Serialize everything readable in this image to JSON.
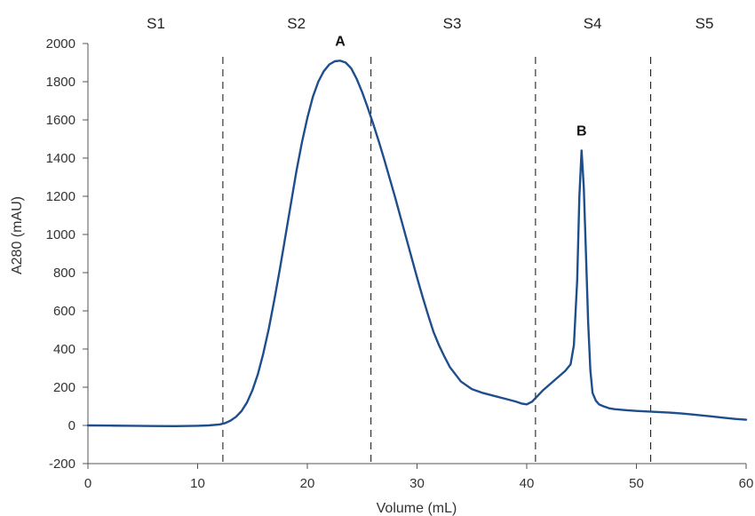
{
  "chart_data": {
    "type": "line",
    "title": "",
    "xlabel": "Volume (mL)",
    "ylabel": "A280 (mAU)",
    "xlim": [
      0,
      60
    ],
    "ylim": [
      -200,
      2000
    ],
    "x_ticks": [
      0,
      10,
      20,
      30,
      40,
      50,
      60
    ],
    "y_ticks": [
      -200,
      0,
      200,
      400,
      600,
      800,
      1000,
      1200,
      1400,
      1600,
      1800,
      2000
    ],
    "grid": false,
    "legend": "none",
    "line_color": "#1f4e8c",
    "section_boundaries": [
      12.3,
      25.8,
      40.8,
      51.3
    ],
    "sections": [
      {
        "label": "S1",
        "center": 6.2
      },
      {
        "label": "S2",
        "center": 19.0
      },
      {
        "label": "S3",
        "center": 33.2
      },
      {
        "label": "S4",
        "center": 46.0
      },
      {
        "label": "S5",
        "center": 56.2
      }
    ],
    "peaks": [
      {
        "label": "A",
        "x": 23.0,
        "y": 1910
      },
      {
        "label": "B",
        "x": 45.0,
        "y": 1440
      }
    ],
    "series": [
      {
        "x": [
          0,
          2,
          4,
          6,
          8,
          10,
          11,
          12,
          12.5,
          13,
          13.5,
          14,
          14.5,
          15,
          15.5,
          16,
          16.5,
          17,
          17.5,
          18,
          18.5,
          19,
          19.5,
          20,
          20.5,
          21,
          21.5,
          22,
          22.5,
          23,
          23.5,
          24,
          24.5,
          25,
          25.5,
          26,
          26.5,
          27,
          27.5,
          28,
          28.5,
          29,
          29.5,
          30,
          30.5,
          31,
          31.5,
          32,
          32.5,
          33,
          34,
          35,
          36,
          37,
          38,
          39,
          39.5,
          40,
          40.5,
          41,
          41.5,
          42,
          42.5,
          43,
          43.5,
          44,
          44.3,
          44.6,
          44.8,
          45,
          45.2,
          45.4,
          45.6,
          45.8,
          46,
          46.3,
          46.6,
          47,
          47.5,
          48,
          49,
          50,
          51,
          52,
          53,
          54,
          55,
          56,
          57,
          58,
          59,
          60
        ],
        "y": [
          0,
          -1,
          -2,
          -3,
          -4,
          -2,
          0,
          5,
          12,
          25,
          45,
          75,
          120,
          185,
          270,
          380,
          510,
          660,
          820,
          990,
          1160,
          1330,
          1480,
          1610,
          1720,
          1800,
          1855,
          1890,
          1907,
          1910,
          1900,
          1870,
          1815,
          1745,
          1665,
          1580,
          1490,
          1395,
          1295,
          1195,
          1090,
          985,
          880,
          775,
          675,
          580,
          490,
          420,
          360,
          305,
          230,
          190,
          170,
          155,
          140,
          125,
          115,
          110,
          125,
          155,
          185,
          210,
          235,
          260,
          285,
          320,
          420,
          760,
          1200,
          1440,
          1250,
          900,
          540,
          290,
          170,
          130,
          110,
          100,
          90,
          85,
          80,
          76,
          73,
          70,
          67,
          63,
          58,
          52,
          46,
          40,
          34,
          30
        ]
      }
    ]
  }
}
